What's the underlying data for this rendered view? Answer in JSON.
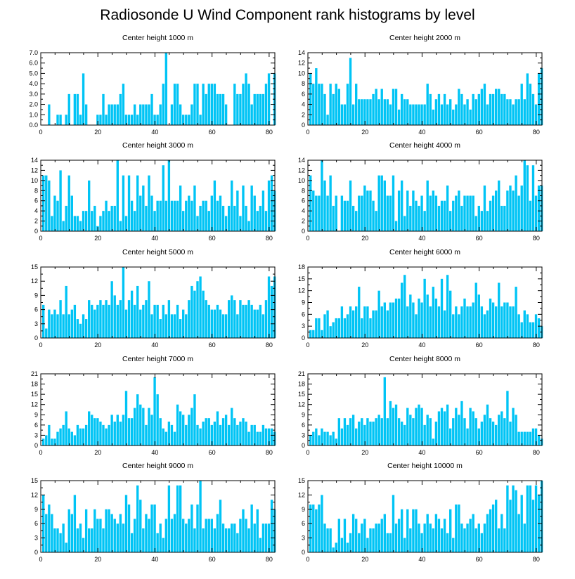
{
  "title": "Radiosonde U Wind Component rank histograms by level",
  "bar_color": "#00c4f5",
  "chart_data": [
    {
      "type": "bar",
      "title": "Center height 1000 m",
      "xlabel": "",
      "ylabel": "",
      "xlim": [
        0,
        82
      ],
      "ylim": [
        0,
        7
      ],
      "xticks": [
        0,
        20,
        40,
        60,
        80
      ],
      "yticks": [
        "0.0",
        "1.0",
        "2.0",
        "3.0",
        "4.0",
        "5.0",
        "6.0",
        "7.0"
      ],
      "categories_start": 1,
      "values": [
        0,
        0,
        2,
        0,
        0,
        1,
        1,
        0,
        1,
        3,
        0,
        3,
        3,
        1,
        5,
        2,
        0,
        0,
        0,
        1,
        1,
        3,
        1,
        2,
        2,
        2,
        2,
        3,
        4,
        1,
        1,
        1,
        2,
        1,
        2,
        2,
        2,
        2,
        3,
        1,
        1,
        2,
        4,
        7,
        0,
        2,
        4,
        4,
        2,
        1,
        1,
        1,
        2,
        4,
        4,
        1,
        4,
        3,
        4,
        4,
        4,
        3,
        3,
        3,
        2,
        0,
        0,
        4,
        3,
        3,
        4,
        5,
        4,
        2,
        3,
        3,
        3,
        3,
        4,
        5,
        0,
        5
      ]
    },
    {
      "type": "bar",
      "title": "Center height 2000 m",
      "xlabel": "",
      "ylabel": "",
      "xlim": [
        0,
        82
      ],
      "ylim": [
        0,
        14
      ],
      "xticks": [
        0,
        20,
        40,
        60,
        80
      ],
      "yticks": [
        "0",
        "2",
        "4",
        "6",
        "8",
        "10",
        "12",
        "14"
      ],
      "categories_start": 1,
      "values": [
        10,
        8,
        11,
        8,
        8,
        6,
        2,
        8,
        6,
        8,
        7,
        4,
        4,
        8,
        13,
        4,
        8,
        5,
        5,
        5,
        5,
        5,
        6,
        7,
        5,
        7,
        5,
        5,
        4,
        7,
        7,
        3,
        6,
        5,
        5,
        4,
        4,
        4,
        4,
        4,
        4,
        8,
        6,
        3,
        5,
        6,
        4,
        6,
        4,
        5,
        3,
        4,
        7,
        6,
        4,
        5,
        3,
        6,
        5,
        6,
        7,
        8,
        4,
        6,
        6,
        7,
        7,
        6,
        6,
        5,
        5,
        4,
        5,
        5,
        8,
        5,
        10,
        8,
        6,
        4,
        10,
        11
      ]
    },
    {
      "type": "bar",
      "title": "Center height 3000 m",
      "xlabel": "",
      "ylabel": "",
      "xlim": [
        0,
        82
      ],
      "ylim": [
        0,
        14
      ],
      "xticks": [
        0,
        20,
        40,
        60,
        80
      ],
      "yticks": [
        "0",
        "2",
        "4",
        "6",
        "8",
        "10",
        "12",
        "14"
      ],
      "categories_start": 1,
      "values": [
        11,
        11,
        10,
        3,
        7,
        6,
        12,
        2,
        5,
        11,
        7,
        3,
        3,
        2,
        4,
        4,
        10,
        4,
        5,
        1,
        3,
        4,
        6,
        4,
        5,
        5,
        14,
        2,
        11,
        3,
        11,
        6,
        4,
        11,
        7,
        9,
        5,
        11,
        7,
        4,
        6,
        6,
        13,
        6,
        14,
        6,
        6,
        6,
        9,
        4,
        6,
        7,
        6,
        9,
        3,
        5,
        6,
        6,
        4,
        7,
        10,
        6,
        7,
        5,
        3,
        5,
        10,
        5,
        8,
        3,
        9,
        5,
        2,
        9,
        7,
        4,
        5,
        8,
        4,
        10,
        11,
        8
      ]
    },
    {
      "type": "bar",
      "title": "Center height 4000 m",
      "xlabel": "",
      "ylabel": "",
      "xlim": [
        0,
        82
      ],
      "ylim": [
        0,
        14
      ],
      "xticks": [
        0,
        20,
        40,
        60,
        80
      ],
      "yticks": [
        "0",
        "2",
        "4",
        "6",
        "8",
        "10",
        "12",
        "14"
      ],
      "categories_start": 1,
      "values": [
        11,
        8,
        7,
        7,
        14,
        10,
        7,
        11,
        5,
        7,
        0,
        7,
        6,
        6,
        10,
        5,
        4,
        7,
        7,
        9,
        8,
        8,
        6,
        4,
        11,
        11,
        10,
        7,
        7,
        11,
        2,
        8,
        10,
        3,
        8,
        5,
        8,
        6,
        5,
        7,
        4,
        10,
        7,
        8,
        7,
        5,
        6,
        6,
        9,
        4,
        6,
        7,
        8,
        5,
        7,
        7,
        7,
        7,
        3,
        5,
        4,
        9,
        4,
        6,
        7,
        8,
        10,
        5,
        5,
        8,
        9,
        8,
        11,
        7,
        9,
        14,
        13,
        6,
        13,
        7,
        9,
        9
      ]
    },
    {
      "type": "bar",
      "title": "Center height 5000 m",
      "xlabel": "",
      "ylabel": "",
      "xlim": [
        0,
        82
      ],
      "ylim": [
        0,
        15
      ],
      "xticks": [
        0,
        20,
        40,
        60,
        80
      ],
      "yticks": [
        "0",
        "3",
        "6",
        "9",
        "12",
        "15"
      ],
      "categories_start": 1,
      "values": [
        7,
        2,
        6,
        5,
        6,
        5,
        8,
        5,
        11,
        5,
        6,
        7,
        4,
        3,
        5,
        4,
        8,
        7,
        6,
        7,
        8,
        7,
        8,
        7,
        12,
        9,
        7,
        8,
        15,
        6,
        8,
        10,
        7,
        11,
        6,
        7,
        8,
        12,
        5,
        7,
        7,
        4,
        7,
        5,
        8,
        5,
        5,
        7,
        4,
        6,
        5,
        8,
        11,
        10,
        12,
        13,
        10,
        8,
        7,
        6,
        6,
        7,
        6,
        5,
        5,
        8,
        9,
        8,
        5,
        8,
        7,
        7,
        8,
        7,
        6,
        6,
        7,
        5,
        8,
        13,
        11,
        13
      ]
    },
    {
      "type": "bar",
      "title": "Center height 6000 m",
      "xlabel": "",
      "ylabel": "",
      "xlim": [
        0,
        82
      ],
      "ylim": [
        0,
        18
      ],
      "xticks": [
        0,
        20,
        40,
        60,
        80
      ],
      "yticks": [
        "0",
        "3",
        "6",
        "9",
        "12",
        "15",
        "18"
      ],
      "categories_start": 1,
      "values": [
        2,
        2,
        5,
        5,
        2,
        6,
        7,
        3,
        4,
        5,
        5,
        8,
        5,
        6,
        8,
        7,
        8,
        13,
        5,
        8,
        8,
        5,
        7,
        7,
        12,
        8,
        9,
        7,
        9,
        9,
        10,
        10,
        14,
        16,
        8,
        11,
        9,
        6,
        10,
        9,
        15,
        11,
        8,
        13,
        10,
        8,
        15,
        7,
        16,
        12,
        6,
        8,
        6,
        8,
        10,
        8,
        8,
        9,
        14,
        11,
        8,
        6,
        7,
        10,
        9,
        8,
        14,
        8,
        9,
        9,
        8,
        8,
        13,
        6,
        4,
        7,
        6,
        4,
        4,
        6,
        5,
        3
      ]
    },
    {
      "type": "bar",
      "title": "Center height 7000 m",
      "xlabel": "",
      "ylabel": "",
      "xlim": [
        0,
        82
      ],
      "ylim": [
        0,
        21
      ],
      "xticks": [
        0,
        20,
        40,
        60,
        80
      ],
      "yticks": [
        "0",
        "3",
        "6",
        "9",
        "12",
        "15",
        "18",
        "21"
      ],
      "categories_start": 1,
      "values": [
        2,
        3,
        6,
        2,
        2,
        4,
        5,
        6,
        10,
        5,
        4,
        3,
        6,
        5,
        5,
        6,
        10,
        9,
        8,
        8,
        7,
        6,
        5,
        6,
        9,
        7,
        9,
        7,
        9,
        16,
        8,
        8,
        11,
        15,
        12,
        11,
        6,
        11,
        9,
        20,
        15,
        8,
        5,
        4,
        7,
        6,
        4,
        12,
        10,
        9,
        6,
        9,
        11,
        15,
        6,
        5,
        7,
        8,
        8,
        6,
        7,
        10,
        6,
        8,
        9,
        6,
        11,
        8,
        6,
        7,
        8,
        7,
        4,
        6,
        6,
        4,
        4,
        6,
        5,
        5,
        5,
        4
      ]
    },
    {
      "type": "bar",
      "title": "Center height 8000 m",
      "xlabel": "",
      "ylabel": "",
      "xlim": [
        0,
        82
      ],
      "ylim": [
        0,
        21
      ],
      "xticks": [
        0,
        20,
        40,
        60,
        80
      ],
      "yticks": [
        "0",
        "3",
        "6",
        "9",
        "12",
        "15",
        "18",
        "21"
      ],
      "categories_start": 1,
      "values": [
        3,
        4,
        5,
        3,
        5,
        4,
        4,
        3,
        4,
        2,
        8,
        5,
        8,
        6,
        8,
        9,
        5,
        7,
        8,
        6,
        8,
        7,
        7,
        8,
        9,
        8,
        20,
        8,
        13,
        11,
        12,
        8,
        7,
        6,
        11,
        9,
        8,
        11,
        12,
        11,
        6,
        9,
        8,
        2,
        7,
        10,
        11,
        10,
        12,
        5,
        8,
        11,
        9,
        13,
        8,
        5,
        11,
        10,
        8,
        5,
        7,
        9,
        12,
        8,
        7,
        6,
        9,
        10,
        8,
        16,
        7,
        11,
        9,
        4,
        4,
        4,
        4,
        4,
        5,
        5,
        3,
        2
      ]
    },
    {
      "type": "bar",
      "title": "Center height 9000 m",
      "xlabel": "",
      "ylabel": "",
      "xlim": [
        0,
        82
      ],
      "ylim": [
        0,
        15
      ],
      "xticks": [
        0,
        20,
        40,
        60,
        80
      ],
      "yticks": [
        "0",
        "3",
        "6",
        "9",
        "12",
        "15"
      ],
      "categories_start": 1,
      "values": [
        12,
        8,
        10,
        8,
        5,
        5,
        4,
        6,
        2,
        9,
        8,
        12,
        5,
        6,
        3,
        9,
        5,
        5,
        9,
        7,
        7,
        5,
        9,
        9,
        8,
        7,
        6,
        8,
        6,
        12,
        10,
        4,
        7,
        14,
        11,
        5,
        8,
        7,
        10,
        10,
        4,
        6,
        3,
        7,
        14,
        7,
        8,
        14,
        14,
        7,
        6,
        7,
        10,
        5,
        10,
        15,
        5,
        7,
        7,
        7,
        5,
        8,
        11,
        6,
        5,
        5,
        6,
        6,
        4,
        7,
        9,
        7,
        5,
        10,
        6,
        9,
        3,
        6,
        6,
        6,
        11,
        9
      ]
    },
    {
      "type": "bar",
      "title": "Center height 10000 m",
      "xlabel": "",
      "ylabel": "",
      "xlim": [
        0,
        82
      ],
      "ylim": [
        0,
        15
      ],
      "xticks": [
        0,
        20,
        40,
        60,
        80
      ],
      "yticks": [
        "0",
        "3",
        "6",
        "9",
        "12",
        "15"
      ],
      "categories_start": 1,
      "values": [
        10,
        10,
        9,
        10,
        12,
        6,
        5,
        5,
        1,
        2,
        7,
        3,
        7,
        2,
        4,
        8,
        7,
        4,
        6,
        7,
        3,
        5,
        5,
        6,
        6,
        7,
        8,
        4,
        4,
        12,
        6,
        7,
        9,
        3,
        9,
        5,
        9,
        9,
        6,
        4,
        6,
        8,
        6,
        5,
        8,
        7,
        5,
        7,
        4,
        9,
        3,
        10,
        10,
        6,
        5,
        6,
        7,
        8,
        5,
        6,
        4,
        6,
        8,
        9,
        10,
        11,
        5,
        8,
        5,
        14,
        11,
        14,
        13,
        8,
        12,
        6,
        14,
        14,
        11,
        14,
        12,
        15
      ]
    }
  ]
}
